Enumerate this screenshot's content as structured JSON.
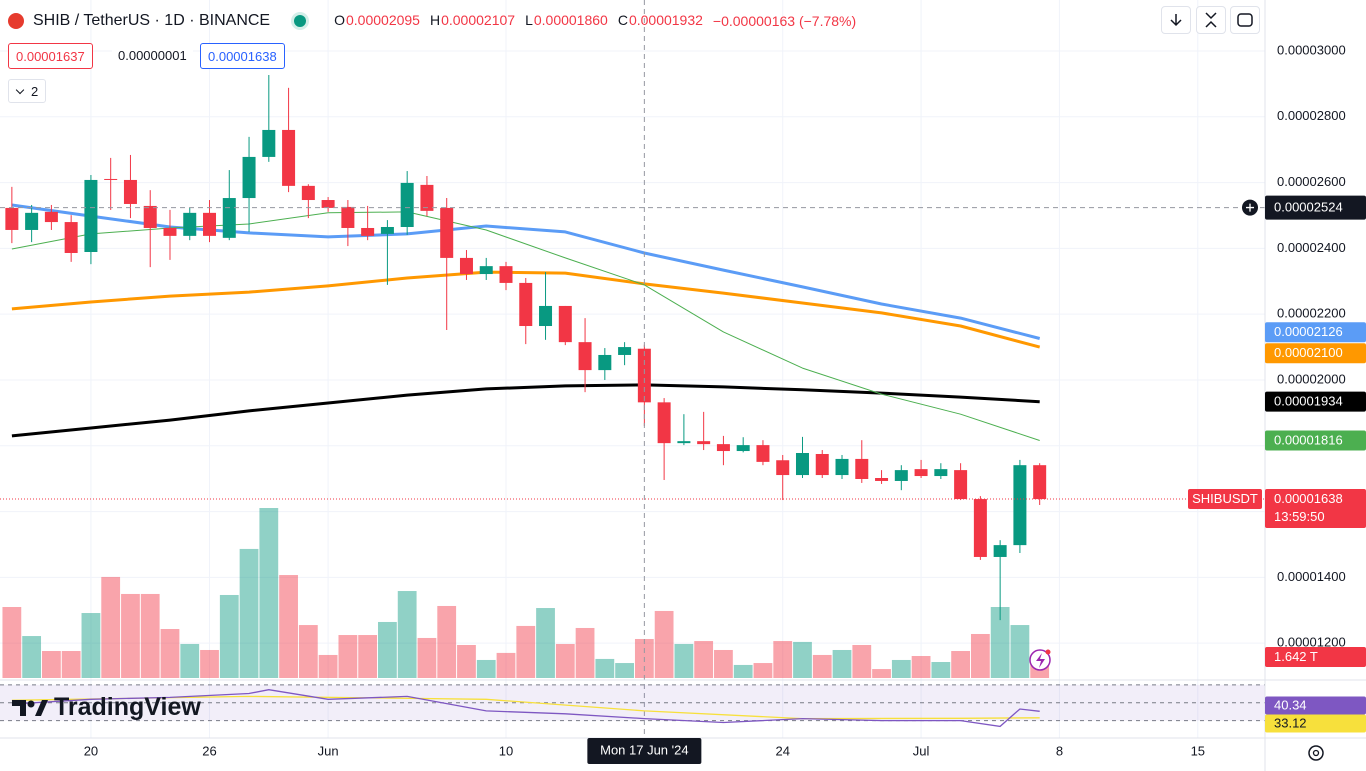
{
  "chart_data": {
    "type": "candlestick",
    "title": "SHIB / TetherUS · 1D · BINANCE",
    "ohlc": [
      {
        "key": "O",
        "text": "0.00002095"
      },
      {
        "key": "H",
        "text": "0.00002107"
      },
      {
        "key": "L",
        "text": "0.00001860"
      },
      {
        "key": "C",
        "text": "0.00001932"
      }
    ],
    "change": "−0.00000163 (−7.78%)",
    "order": {
      "sell": "0.00001637",
      "spread": "0.00000001",
      "buy": "0.00001638"
    },
    "indicators": "2",
    "brand": "TradingView",
    "up_color": "#089981",
    "down_color": "#f23645",
    "grid": true,
    "xlim": [
      -0.6,
      63.4
    ],
    "xticks": [
      {
        "value": 4,
        "label": "20"
      },
      {
        "value": 10,
        "label": "26"
      },
      {
        "value": 16,
        "label": "Jun"
      },
      {
        "value": 25,
        "label": "10"
      },
      {
        "value": 39,
        "label": "24"
      },
      {
        "value": 46,
        "label": "Jul"
      },
      {
        "value": 53,
        "label": "8"
      },
      {
        "value": 60,
        "label": "15"
      }
    ],
    "ylim": [
      1.088e-05,
      3.155e-05
    ],
    "yticks": [
      {
        "value": 1.2e-05,
        "label": "0.00001200"
      },
      {
        "value": 1.4e-05,
        "label": "0.00001400"
      },
      {
        "value": 1.6e-05,
        "label": "0.00001600"
      },
      {
        "value": 1.8e-05,
        "label": "0.00001800"
      },
      {
        "value": 2e-05,
        "label": "0.00002000"
      },
      {
        "value": 2.2e-05,
        "label": "0.00002200"
      },
      {
        "value": 2.4e-05,
        "label": "0.00002400"
      },
      {
        "value": 2.6e-05,
        "label": "0.00002600"
      },
      {
        "value": 2.8e-05,
        "label": "0.00002800"
      },
      {
        "value": 3e-05,
        "label": "0.00003000"
      }
    ],
    "open": [
      2.523e-05,
      2.456e-05,
      2.511e-05,
      2.48e-05,
      2.389e-05,
      2.611e-05,
      2.608e-05,
      2.529e-05,
      2.462e-05,
      2.438e-05,
      2.508e-05,
      2.432e-05,
      2.553e-05,
      2.678e-05,
      2.76e-05,
      2.59e-05,
      2.547e-05,
      2.526e-05,
      2.462e-05,
      2.444e-05,
      2.465e-05,
      2.593e-05,
      2.523e-05,
      2.371e-05,
      2.322e-05,
      2.346e-05,
      2.295e-05,
      2.164e-05,
      2.225e-05,
      2.115e-05,
      2.03e-05,
      2.076e-05,
      2.095e-05,
      1.932e-05,
      1.808e-05,
      1.814e-05,
      1.805e-05,
      1.784e-05,
      1.802e-05,
      1.756e-05,
      1.711e-05,
      1.775e-05,
      1.711e-05,
      1.76e-05,
      1.702e-05,
      1.693e-05,
      1.729e-05,
      1.708e-05,
      1.726e-05,
      1.638e-05,
      1.462e-05,
      1.498e-05,
      1.741e-05
    ],
    "high": [
      2.587e-05,
      2.532e-05,
      2.532e-05,
      2.501e-05,
      2.623e-05,
      2.675e-05,
      2.684e-05,
      2.577e-05,
      2.517e-05,
      2.523e-05,
      2.547e-05,
      2.638e-05,
      2.739e-05,
      2.927e-05,
      2.888e-05,
      2.595e-05,
      2.556e-05,
      2.547e-05,
      2.529e-05,
      2.486e-05,
      2.635e-05,
      2.62e-05,
      2.553e-05,
      2.395e-05,
      2.371e-05,
      2.359e-05,
      2.31e-05,
      2.328e-05,
      2.225e-05,
      2.188e-05,
      2.097e-05,
      2.115e-05,
      2.107e-05,
      1.945e-05,
      1.896e-05,
      1.903e-05,
      1.83e-05,
      1.826e-05,
      1.817e-05,
      1.772e-05,
      1.827e-05,
      1.787e-05,
      1.772e-05,
      1.817e-05,
      1.726e-05,
      1.741e-05,
      1.757e-05,
      1.747e-05,
      1.747e-05,
      1.647e-05,
      1.513e-05,
      1.757e-05,
      1.747e-05
    ],
    "low": [
      2.416e-05,
      2.419e-05,
      2.456e-05,
      2.359e-05,
      2.352e-05,
      2.517e-05,
      2.492e-05,
      2.343e-05,
      2.365e-05,
      2.425e-05,
      2.419e-05,
      2.425e-05,
      2.45e-05,
      2.663e-05,
      2.571e-05,
      2.492e-05,
      2.511e-05,
      2.407e-05,
      2.425e-05,
      2.289e-05,
      2.441e-05,
      2.498e-05,
      2.152e-05,
      2.304e-05,
      2.304e-05,
      2.273e-05,
      2.109e-05,
      2.122e-05,
      2.106e-05,
      1.963e-05,
      2e-05,
      2.045e-05,
      1.86e-05,
      1.696e-05,
      1.802e-05,
      1.787e-05,
      1.741e-05,
      1.78e-05,
      1.741e-05,
      1.635e-05,
      1.702e-05,
      1.702e-05,
      1.699e-05,
      1.687e-05,
      1.684e-05,
      1.665e-05,
      1.702e-05,
      1.699e-05,
      1.635e-05,
      1.453e-05,
      1.27e-05,
      1.474e-05,
      1.62e-05
    ],
    "close": [
      2.456e-05,
      2.508e-05,
      2.48e-05,
      2.386e-05,
      2.608e-05,
      2.608e-05,
      2.535e-05,
      2.462e-05,
      2.438e-05,
      2.508e-05,
      2.438e-05,
      2.553e-05,
      2.678e-05,
      2.76e-05,
      2.59e-05,
      2.547e-05,
      2.523e-05,
      2.462e-05,
      2.438e-05,
      2.465e-05,
      2.599e-05,
      2.514e-05,
      2.371e-05,
      2.322e-05,
      2.346e-05,
      2.295e-05,
      2.164e-05,
      2.225e-05,
      2.115e-05,
      2.03e-05,
      2.076e-05,
      2.1e-05,
      1.932e-05,
      1.808e-05,
      1.814e-05,
      1.805e-05,
      1.784e-05,
      1.802e-05,
      1.751e-05,
      1.711e-05,
      1.778e-05,
      1.711e-05,
      1.76e-05,
      1.699e-05,
      1.693e-05,
      1.726e-05,
      1.708e-05,
      1.729e-05,
      1.638e-05,
      1.462e-05,
      1.498e-05,
      1.741e-05,
      1.638e-05
    ],
    "volume": [
      5.55,
      3.28,
      2.11,
      2.11,
      5.08,
      7.9,
      6.57,
      6.57,
      3.83,
      2.66,
      2.19,
      6.49,
      10.09,
      13.29,
      8.05,
      4.14,
      1.8,
      3.36,
      3.36,
      4.38,
      6.8,
      3.13,
      5.63,
      2.58,
      1.41,
      1.96,
      4.07,
      5.47,
      2.66,
      3.91,
      1.49,
      1.17,
      3.05,
      5.24,
      2.66,
      2.89,
      2.19,
      1.02,
      1.17,
      2.89,
      2.82,
      1.8,
      2.19,
      2.58,
      0.7,
      1.41,
      1.72,
      1.25,
      2.11,
      3.44,
      5.55,
      4.14,
      1.642
    ],
    "volume_label": "1.642 T",
    "symbol_label": "SHIBUSDT",
    "last_price_label": "0.00001638",
    "countdown": "13:59:50",
    "crosshair": {
      "index": 32,
      "date_label": "Mon 17 Jun '24",
      "price": 2.524e-05,
      "price_label": "0.00002524"
    },
    "series": [
      {
        "color": "#5b9cf6",
        "width": 3,
        "x": [
          0,
          4,
          8,
          12,
          16,
          20,
          24,
          28,
          32,
          36,
          40,
          44,
          48,
          52
        ],
        "values": [
          2.532e-05,
          2.498e-05,
          2.465e-05,
          2.447e-05,
          2.435e-05,
          2.444e-05,
          2.468e-05,
          2.45e-05,
          2.386e-05,
          2.334e-05,
          2.283e-05,
          2.231e-05,
          2.188e-05,
          2.126e-05
        ],
        "last_label": "0.00002126"
      },
      {
        "color": "#ff9800",
        "width": 3,
        "x": [
          0,
          4,
          8,
          12,
          16,
          20,
          24,
          28,
          32,
          36,
          40,
          44,
          48,
          52
        ],
        "values": [
          2.216e-05,
          2.237e-05,
          2.255e-05,
          2.267e-05,
          2.286e-05,
          2.31e-05,
          2.328e-05,
          2.325e-05,
          2.292e-05,
          2.264e-05,
          2.234e-05,
          2.204e-05,
          2.164e-05,
          2.1e-05
        ],
        "last_label": "0.00002100"
      },
      {
        "color": "#000000",
        "width": 3,
        "x": [
          0,
          4,
          8,
          12,
          16,
          20,
          24,
          28,
          32,
          36,
          40,
          44,
          48,
          52
        ],
        "values": [
          1.83e-05,
          1.854e-05,
          1.878e-05,
          1.906e-05,
          1.93e-05,
          1.954e-05,
          1.973e-05,
          1.982e-05,
          1.985e-05,
          1.979e-05,
          1.97e-05,
          1.96e-05,
          1.948e-05,
          1.934e-05
        ],
        "last_label": "0.00001934"
      },
      {
        "color": "#4caf50",
        "width": 1,
        "x": [
          0,
          4,
          8,
          12,
          16,
          20,
          24,
          28,
          32,
          36,
          40,
          44,
          48,
          52
        ],
        "values": [
          2.398e-05,
          2.444e-05,
          2.462e-05,
          2.474e-05,
          2.508e-05,
          2.511e-05,
          2.456e-05,
          2.371e-05,
          2.289e-05,
          2.146e-05,
          2.036e-05,
          1.957e-05,
          1.896e-05,
          1.816e-05
        ],
        "last_label": "0.00001816"
      }
    ],
    "rsi": {
      "ylim": [
        10.5,
        75.4
      ],
      "levels": [
        70,
        50,
        30
      ],
      "series": [
        {
          "color": "#7e57c2",
          "x": [
            0,
            4,
            8,
            12,
            13,
            16,
            20,
            24,
            28,
            32,
            36,
            40,
            44,
            48,
            50,
            51,
            52
          ],
          "values": [
            48.4,
            53.8,
            55.9,
            60.3,
            64.6,
            53.8,
            57.0,
            40.8,
            37.6,
            32.2,
            27.8,
            32.2,
            30.0,
            30.0,
            23.5,
            43.0,
            40.34
          ],
          "last_label": "40.34"
        },
        {
          "color": "#f7e03c",
          "x": [
            0,
            12,
            24,
            32,
            40,
            48,
            52
          ],
          "values": [
            52.7,
            57.0,
            53.8,
            40.8,
            32.2,
            32.5,
            33.12
          ],
          "last_label": "33.12"
        }
      ]
    }
  }
}
